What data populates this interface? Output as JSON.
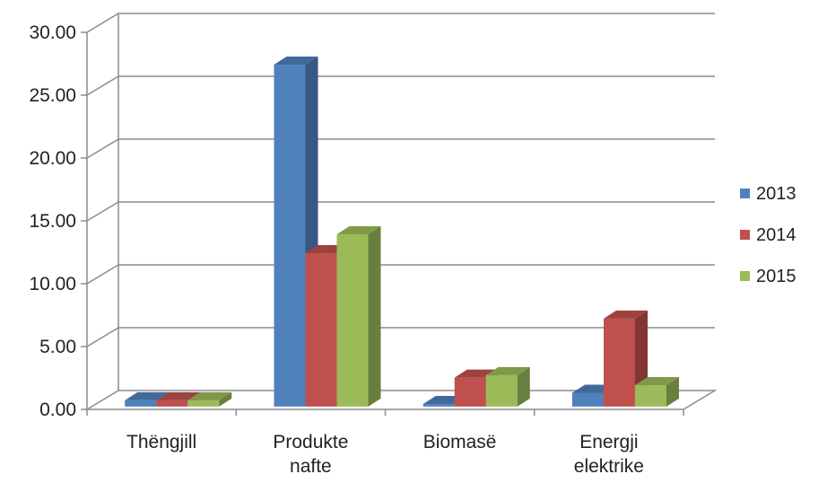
{
  "chart_data": {
    "type": "bar",
    "style": "3d-clustered-column",
    "categories": [
      [
        "Thëngjill"
      ],
      [
        "Produkte",
        "nafte"
      ],
      [
        "Biomasë"
      ],
      [
        "Energji",
        "elektrike"
      ]
    ],
    "series": [
      {
        "name": "2013",
        "color": "#4F81BD",
        "values": [
          0.5,
          27.2,
          0.2,
          1.1
        ]
      },
      {
        "name": "2014",
        "color": "#C0504D",
        "values": [
          0.5,
          12.2,
          2.3,
          7.0
        ]
      },
      {
        "name": "2015",
        "color": "#9BBB59",
        "values": [
          0.5,
          13.7,
          2.5,
          1.7
        ]
      }
    ],
    "ylim": [
      0,
      30
    ],
    "yticks": [
      "0.00",
      "5.00",
      "10.00",
      "15.00",
      "20.00",
      "25.00",
      "30.00"
    ],
    "grid": true,
    "legend_position": "right"
  }
}
